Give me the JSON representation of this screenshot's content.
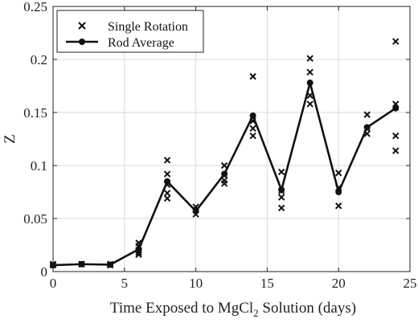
{
  "chart_data": {
    "type": "line",
    "xlabel_prefix": "Time Exposed to MgCl",
    "xlabel_sub": "2",
    "xlabel_suffix": " Solution (days)",
    "ylabel": "Z",
    "xlim": [
      0,
      25
    ],
    "ylim": [
      0,
      0.25
    ],
    "x_ticks": [
      0,
      5,
      10,
      15,
      20,
      25
    ],
    "x_tick_labels": [
      "0",
      "5",
      "10",
      "15",
      "20",
      "25"
    ],
    "y_ticks": [
      0,
      0.05,
      0.1,
      0.15,
      0.2,
      0.25
    ],
    "y_tick_labels": [
      "0",
      "0.05",
      "0.1",
      "0.15",
      "0.2",
      "0.25"
    ],
    "grid": true,
    "legend_position": "top-left",
    "series": [
      {
        "name": "Single Rotation",
        "type": "scatter",
        "marker": "x",
        "x": [
          0,
          0,
          2,
          2,
          4,
          4,
          6,
          6,
          6,
          6,
          6,
          8,
          8,
          8,
          8,
          8,
          10,
          10,
          10,
          12,
          12,
          12,
          12,
          14,
          14,
          14,
          14,
          16,
          16,
          16,
          16,
          18,
          18,
          18,
          18,
          20,
          20,
          20,
          22,
          22,
          22,
          24,
          24,
          24,
          24
        ],
        "y": [
          0.006,
          0.007,
          0.007,
          0.007,
          0.006,
          0.007,
          0.027,
          0.024,
          0.02,
          0.018,
          0.016,
          0.105,
          0.092,
          0.082,
          0.074,
          0.069,
          0.061,
          0.058,
          0.054,
          0.1,
          0.091,
          0.086,
          0.083,
          0.184,
          0.142,
          0.135,
          0.128,
          0.094,
          0.076,
          0.07,
          0.06,
          0.201,
          0.188,
          0.166,
          0.158,
          0.093,
          0.079,
          0.062,
          0.148,
          0.135,
          0.13,
          0.217,
          0.158,
          0.128,
          0.114
        ]
      },
      {
        "name": "Rod Average",
        "type": "line",
        "marker": "o",
        "x": [
          0,
          2,
          4,
          6,
          8,
          10,
          12,
          14,
          16,
          18,
          20,
          22,
          24
        ],
        "y": [
          0.006,
          0.007,
          0.0065,
          0.021,
          0.085,
          0.057,
          0.092,
          0.147,
          0.077,
          0.178,
          0.075,
          0.136,
          0.154
        ]
      }
    ]
  }
}
